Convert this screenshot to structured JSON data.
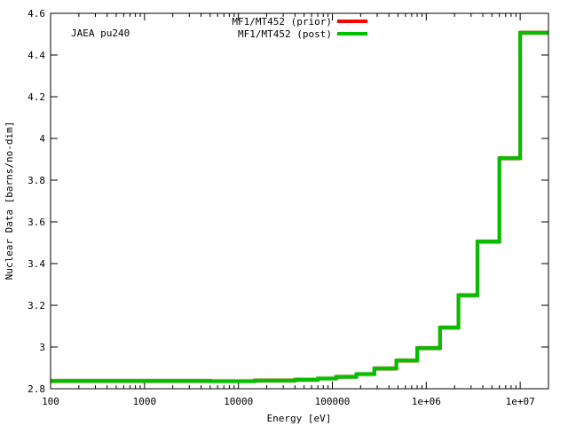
{
  "chart_data": {
    "type": "line",
    "title": "",
    "xlabel": "Energy [eV]",
    "ylabel": "Nuclear Data [barns/no-dim]",
    "annotation": "JAEA pu240",
    "xscale": "log",
    "xlim": [
      100,
      20000000
    ],
    "ylim": [
      2.8,
      4.6
    ],
    "grid": false,
    "legend_position": "top-center",
    "x_ticks": [
      {
        "value": 100,
        "label": "100"
      },
      {
        "value": 1000,
        "label": "1000"
      },
      {
        "value": 10000,
        "label": "10000"
      },
      {
        "value": 100000,
        "label": "100000"
      },
      {
        "value": 1000000,
        "label": "1e+06"
      },
      {
        "value": 10000000,
        "label": "1e+07"
      }
    ],
    "y_ticks": [
      {
        "value": 2.8,
        "label": "2.8"
      },
      {
        "value": 3.0,
        "label": "3"
      },
      {
        "value": 3.2,
        "label": "3.2"
      },
      {
        "value": 3.4,
        "label": "3.4"
      },
      {
        "value": 3.6,
        "label": "3.6"
      },
      {
        "value": 3.8,
        "label": "3.8"
      },
      {
        "value": 4.0,
        "label": "4"
      },
      {
        "value": 4.2,
        "label": "4.2"
      },
      {
        "value": 4.4,
        "label": "4.4"
      },
      {
        "value": 4.6,
        "label": "4.6"
      }
    ],
    "bin_edges": [
      100,
      5000,
      15000,
      40000,
      70000,
      110000,
      180000,
      280000,
      480000,
      800000,
      1400000,
      2200000,
      3500000,
      6000000,
      10000000,
      20000000
    ],
    "series": [
      {
        "name": "MF1/MT452 (prior)",
        "color": "#ff0000",
        "values": [
          2.837,
          2.836,
          2.839,
          2.843,
          2.849,
          2.857,
          2.87,
          2.897,
          2.935,
          2.995,
          3.093,
          3.248,
          3.505,
          3.905,
          4.507
        ]
      },
      {
        "name": "MF1/MT452 (post)",
        "color": "#00c000",
        "values": [
          2.837,
          2.836,
          2.839,
          2.843,
          2.849,
          2.857,
          2.87,
          2.897,
          2.935,
          2.995,
          3.093,
          3.248,
          3.505,
          3.905,
          4.507
        ]
      }
    ]
  }
}
